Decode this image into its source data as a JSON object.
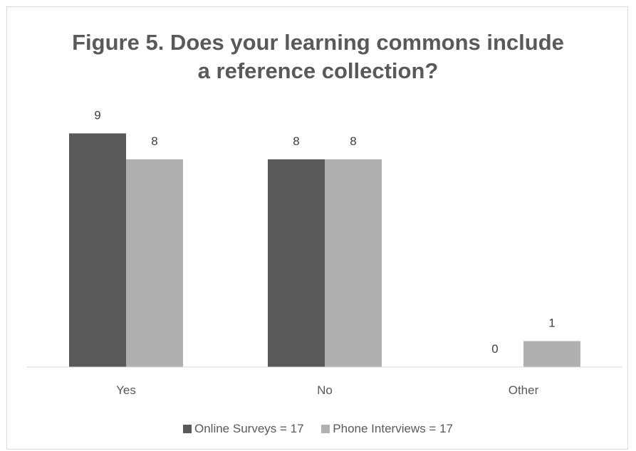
{
  "chart_data": {
    "type": "bar",
    "title_lines": [
      "Figure 5. Does your learning commons include",
      "a reference collection?"
    ],
    "categories": [
      "Yes",
      "No",
      "Other"
    ],
    "series": [
      {
        "name": "Online Surveys = 17",
        "values": [
          9,
          8,
          0
        ],
        "color": "#595959"
      },
      {
        "name": "Phone Interviews = 17",
        "values": [
          8,
          8,
          1
        ],
        "color": "#b0b0b0"
      }
    ],
    "ylim": [
      0,
      9
    ],
    "grid": false,
    "data_labels": true,
    "legend_position": "bottom"
  }
}
